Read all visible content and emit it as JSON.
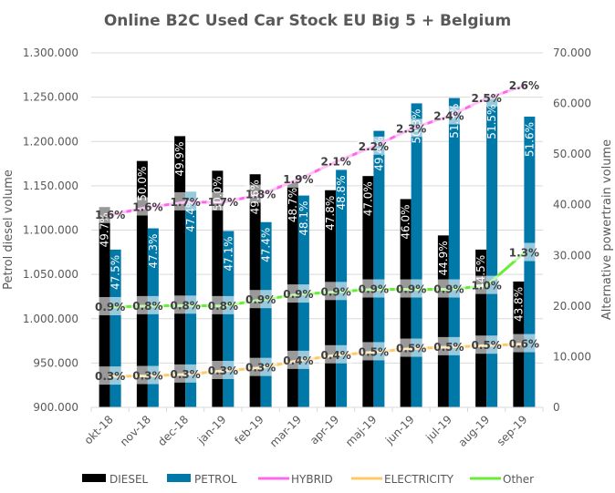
{
  "chart_data": {
    "type": "bar",
    "title": "Online B2C Used Car Stock EU Big 5 + Belgium",
    "xlabel": "",
    "ylabel": "Petrol diesel volume",
    "y2label": "Alternative powertrain volume",
    "ylim": [
      900000,
      1300000
    ],
    "y2lim": [
      0,
      70000
    ],
    "yticks": [
      "900.000",
      "950.000",
      "1.000.000",
      "1.050.000",
      "1.100.000",
      "1.150.000",
      "1.200.000",
      "1.250.000",
      "1.300.000"
    ],
    "y2ticks": [
      "0",
      "10.000",
      "20.000",
      "30.000",
      "40.000",
      "50.000",
      "60.000",
      "70.000"
    ],
    "grid": true,
    "legend_position": "bottom",
    "categories": [
      "okt-18",
      "nov-18",
      "dec-18",
      "jan-19",
      "feb-19",
      "mar-19",
      "apr-19",
      "maj-19",
      "jun-19",
      "jul-19",
      "aug-19",
      "sep-19"
    ],
    "series": [
      {
        "name": "DIESEL",
        "kind": "bar",
        "axis": "left",
        "color": "#000000",
        "values": [
          1126000,
          1178000,
          1206000,
          1167000,
          1163000,
          1154000,
          1145000,
          1161000,
          1135000,
          1094000,
          1078000,
          1042000
        ],
        "labels": [
          "49.7%",
          "50.0%",
          "49.9%",
          "50.0%",
          "49.6%",
          "48.7%",
          "47.8%",
          "47.0%",
          "46.0%",
          "44.9%",
          "44.5%",
          "43.8%"
        ]
      },
      {
        "name": "PETROL",
        "kind": "bar",
        "axis": "left",
        "color": "#0079A8",
        "values": [
          1078000,
          1102000,
          1143000,
          1099000,
          1109000,
          1139000,
          1168000,
          1212000,
          1243000,
          1249000,
          1248000,
          1228000
        ],
        "labels": [
          "47.5%",
          "47.3%",
          "47.4%",
          "47.1%",
          "47.4%",
          "48.1%",
          "48.8%",
          "49.4%",
          "50.3%",
          "51.3%",
          "51.5%",
          "51.6%"
        ]
      },
      {
        "name": "HYBRID",
        "kind": "line",
        "axis": "right",
        "color": "#FF66EE",
        "values": [
          38000,
          39500,
          40500,
          40500,
          42000,
          45000,
          48500,
          51500,
          55000,
          57500,
          61000,
          63500
        ],
        "labels": [
          "1.6%",
          "1.6%",
          "1.7%",
          "1.7%",
          "1.8%",
          "1.9%",
          "2.1%",
          "2.2%",
          "2.3%",
          "2.4%",
          "2.5%",
          "2.6%"
        ]
      },
      {
        "name": "ELECTRICITY",
        "kind": "line",
        "axis": "right",
        "color": "#FFC966",
        "values": [
          6100,
          6200,
          6500,
          7200,
          7800,
          9200,
          10300,
          10900,
          11600,
          11900,
          12200,
          12500
        ],
        "labels": [
          "0.3%",
          "0.3%",
          "0.3%",
          "0.3%",
          "0.3%",
          "0.4%",
          "0.4%",
          "0.5%",
          "0.5%",
          "0.5%",
          "0.5%",
          "0.6%"
        ]
      },
      {
        "name": "Other",
        "kind": "line",
        "axis": "right",
        "color": "#66EE33",
        "values": [
          19800,
          20000,
          20100,
          20000,
          21200,
          22300,
          22800,
          23300,
          23300,
          23300,
          24000,
          30500
        ],
        "labels": [
          "0.9%",
          "0.8%",
          "0.8%",
          "0.8%",
          "0.9%",
          "0.9%",
          "0.9%",
          "0.9%",
          "0.9%",
          "0.9%",
          "1.0%",
          "1.3%"
        ]
      }
    ]
  }
}
